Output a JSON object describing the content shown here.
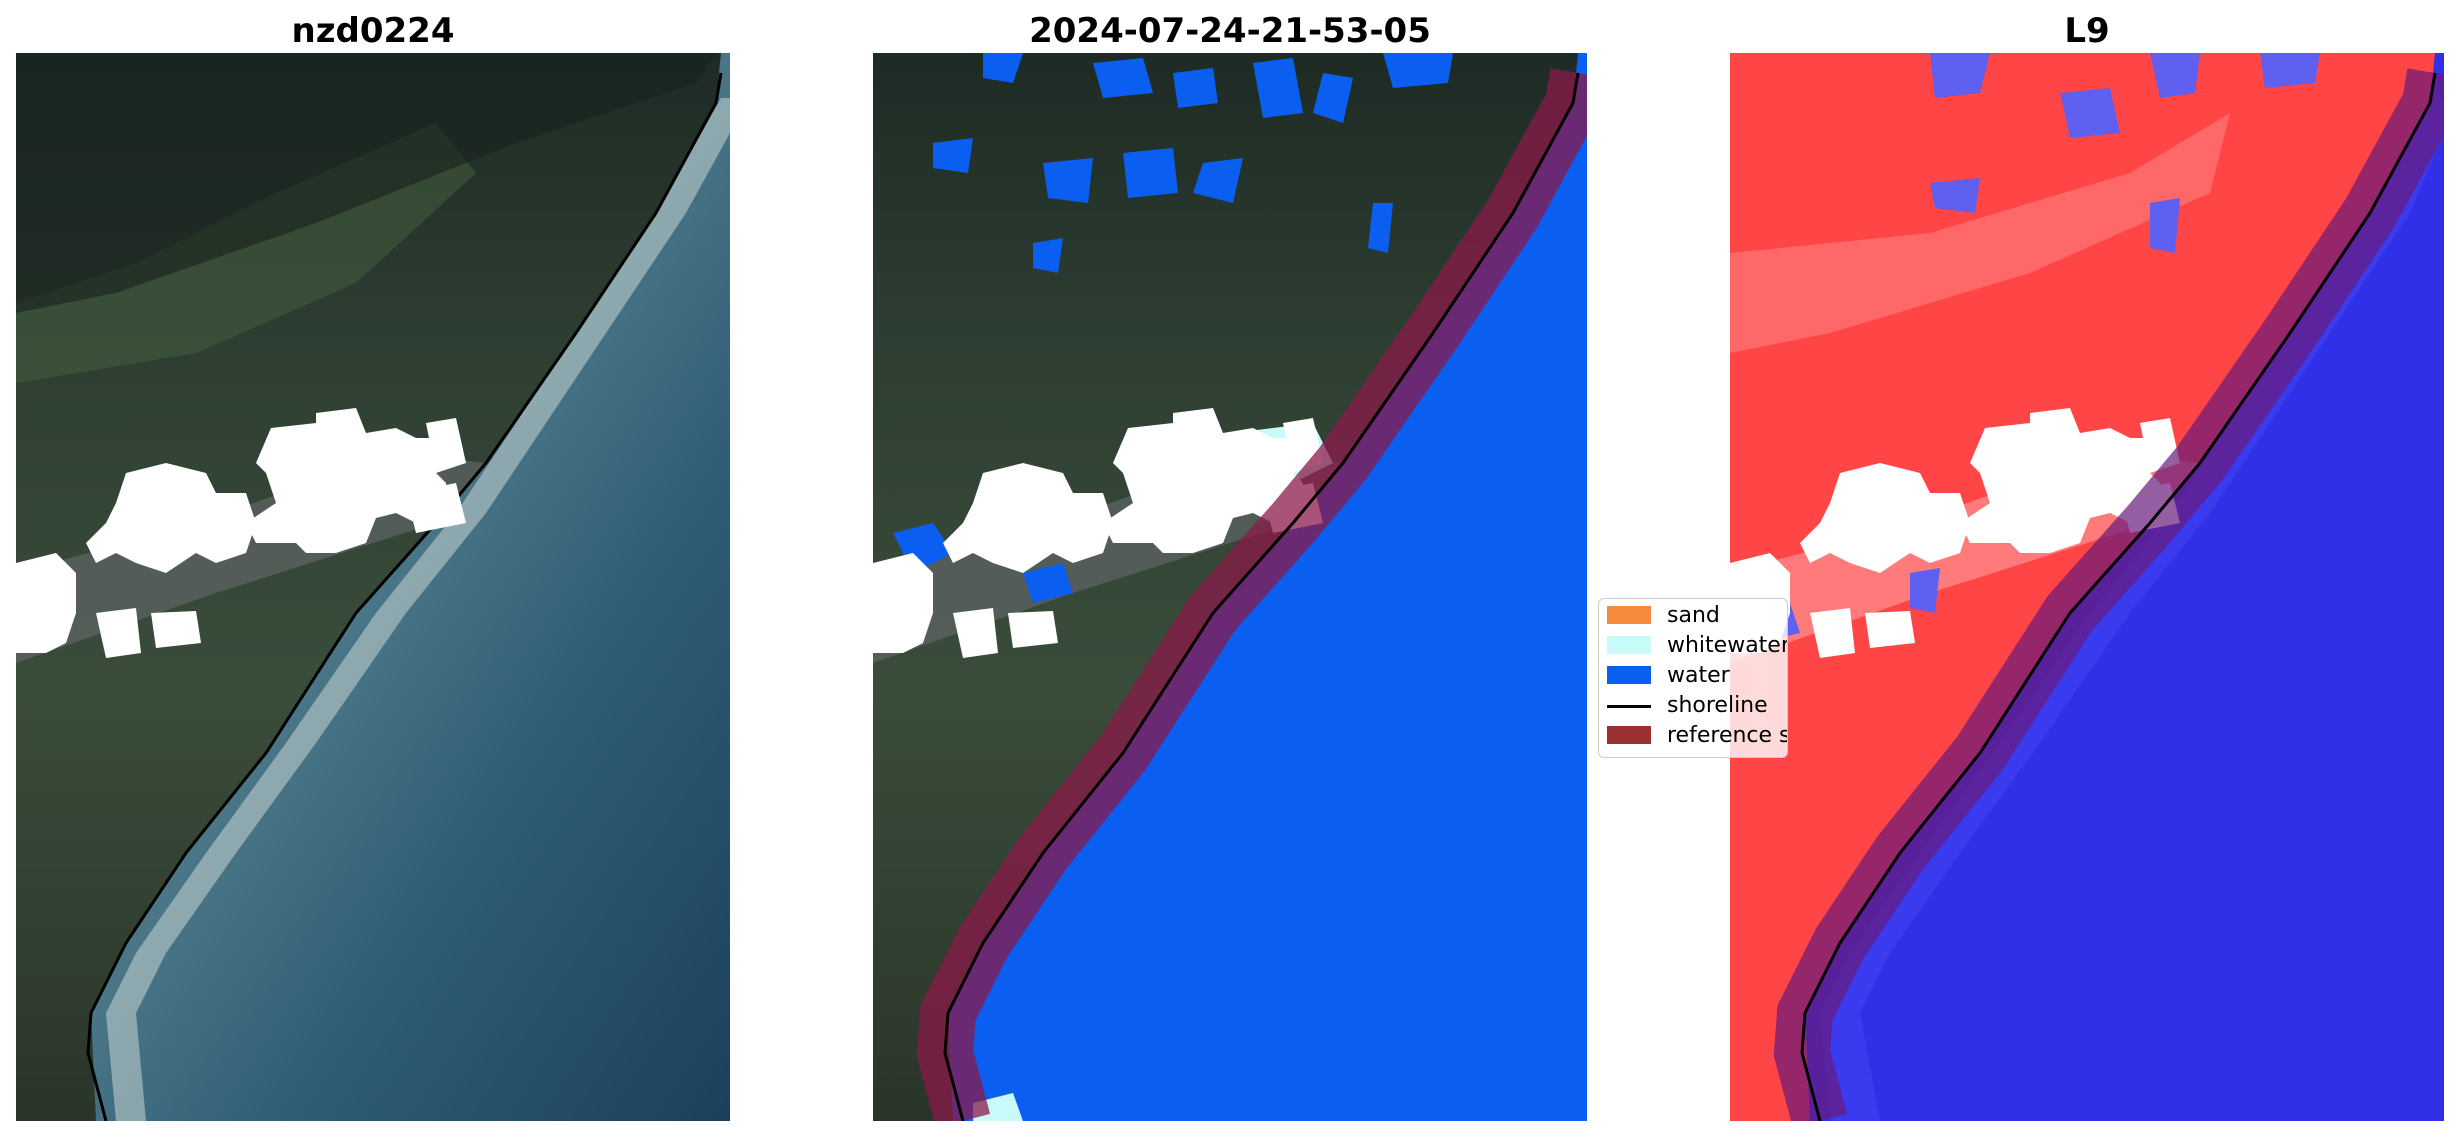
{
  "panels": [
    {
      "title": "nzd0224"
    },
    {
      "title": "2024-07-24-21-53-05"
    },
    {
      "title": "L9"
    }
  ],
  "legend": {
    "items": [
      {
        "label": "sand",
        "color": "#f58b3c",
        "type": "patch"
      },
      {
        "label": "whitewater",
        "color": "#c8fafa",
        "type": "patch"
      },
      {
        "label": "water",
        "color": "#0a5ef0",
        "type": "patch"
      },
      {
        "label": "shoreline",
        "color": "#000000",
        "type": "line"
      },
      {
        "label": "reference shoreline buffer",
        "color": "#9b3030",
        "type": "patch"
      }
    ]
  },
  "colors": {
    "land_dark": "#1f2a26",
    "land_green": "#3d4f3c",
    "sea_shallow": "#5f8a95",
    "sea_deep": "#1f4a66",
    "water_class": "#0a5ef0",
    "index_land": "#ff4444",
    "index_water": "#3333ee",
    "buffer": "#8b1a4a"
  }
}
